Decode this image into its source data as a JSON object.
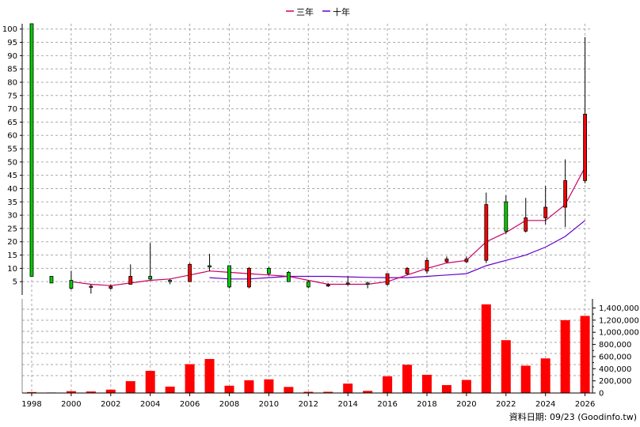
{
  "chart_data": {
    "type": "candlestick",
    "legend": [
      {
        "label": "三年",
        "color": "#cc0066"
      },
      {
        "label": "十年",
        "color": "#6600cc"
      }
    ],
    "up_color": "#ff0000",
    "down_color": "#00cc00",
    "price_axis": {
      "ylim": [
        0,
        102
      ],
      "ticks": [
        5,
        10,
        15,
        20,
        25,
        30,
        35,
        40,
        45,
        50,
        55,
        60,
        65,
        70,
        75,
        80,
        85,
        90,
        95,
        100
      ]
    },
    "volume_axis": {
      "ylim": [
        0,
        1550000
      ],
      "ticks": [
        "0",
        "200,000",
        "400,000",
        "600,000",
        "800,000",
        "1,000,000",
        "1,200,000",
        "1,400,000"
      ]
    },
    "x_ticks": [
      "1998",
      "2000",
      "2002",
      "2004",
      "2006",
      "2008",
      "2010",
      "2012",
      "2014",
      "2016",
      "2018",
      "2020",
      "2022",
      "2024",
      "2026"
    ],
    "candles": [
      {
        "year": 1998,
        "open": 102,
        "close": 7,
        "high": 102,
        "low": 7
      },
      {
        "year": 1999,
        "open": 7,
        "close": 4.5,
        "high": 7,
        "low": 4.5
      },
      {
        "year": 2000,
        "open": 5.5,
        "close": 2.5,
        "high": 9,
        "low": 2
      },
      {
        "year": 2001,
        "open": 3,
        "close": 3.3,
        "high": 4,
        "low": 0.5
      },
      {
        "year": 2002,
        "open": 2.5,
        "close": 3.2,
        "high": 4,
        "low": 2
      },
      {
        "year": 2003,
        "open": 4,
        "close": 7,
        "high": 11.5,
        "low": 4
      },
      {
        "year": 2004,
        "open": 7,
        "close": 6,
        "high": 19.5,
        "low": 5.5
      },
      {
        "year": 2005,
        "open": 5.5,
        "close": 5,
        "high": 6,
        "low": 4
      },
      {
        "year": 2006,
        "open": 5,
        "close": 11.5,
        "high": 12,
        "low": 5
      },
      {
        "year": 2007,
        "open": 11,
        "close": 10.5,
        "high": 15.5,
        "low": 9
      },
      {
        "year": 2008,
        "open": 11,
        "close": 3,
        "high": 11,
        "low": 2.5
      },
      {
        "year": 2009,
        "open": 3,
        "close": 10,
        "high": 10.5,
        "low": 2.5
      },
      {
        "year": 2010,
        "open": 10,
        "close": 8,
        "high": 10.5,
        "low": 7.5
      },
      {
        "year": 2011,
        "open": 8.5,
        "close": 5,
        "high": 9,
        "low": 5
      },
      {
        "year": 2012,
        "open": 5,
        "close": 3,
        "high": 5.5,
        "low": 2.5
      },
      {
        "year": 2013,
        "open": 3.5,
        "close": 3.8,
        "high": 4.5,
        "low": 3
      },
      {
        "year": 2014,
        "open": 4,
        "close": 4.5,
        "high": 7,
        "low": 3.5
      },
      {
        "year": 2015,
        "open": 4.5,
        "close": 4,
        "high": 5,
        "low": 2.5
      },
      {
        "year": 2016,
        "open": 4,
        "close": 8,
        "high": 8,
        "low": 3.5
      },
      {
        "year": 2017,
        "open": 8,
        "close": 10,
        "high": 10.5,
        "low": 7.5
      },
      {
        "year": 2018,
        "open": 9,
        "close": 13,
        "high": 14,
        "low": 8
      },
      {
        "year": 2019,
        "open": 12.5,
        "close": 13.5,
        "high": 14.5,
        "low": 12
      },
      {
        "year": 2020,
        "open": 12.5,
        "close": 13.5,
        "high": 14.5,
        "low": 12
      },
      {
        "year": 2021,
        "open": 13,
        "close": 34,
        "high": 38.5,
        "low": 12
      },
      {
        "year": 2022,
        "open": 35,
        "close": 24,
        "high": 37.5,
        "low": 23
      },
      {
        "year": 2023,
        "open": 24,
        "close": 29,
        "high": 36.5,
        "low": 23.5
      },
      {
        "year": 2024,
        "open": 29,
        "close": 33,
        "high": 41,
        "low": 26.5
      },
      {
        "year": 2025,
        "open": 33,
        "close": 43,
        "high": 51,
        "low": 25.5
      },
      {
        "year": 2026,
        "open": 43,
        "close": 68,
        "high": 97,
        "low": 42
      }
    ],
    "ma_3y": [
      {
        "year": 2000,
        "value": 5
      },
      {
        "year": 2001,
        "value": 4
      },
      {
        "year": 2002,
        "value": 3.5
      },
      {
        "year": 2003,
        "value": 4.5
      },
      {
        "year": 2004,
        "value": 5.5
      },
      {
        "year": 2005,
        "value": 6
      },
      {
        "year": 2006,
        "value": 7.5
      },
      {
        "year": 2007,
        "value": 9
      },
      {
        "year": 2008,
        "value": 8.5
      },
      {
        "year": 2009,
        "value": 8
      },
      {
        "year": 2010,
        "value": 7.5
      },
      {
        "year": 2011,
        "value": 7
      },
      {
        "year": 2012,
        "value": 5.5
      },
      {
        "year": 2013,
        "value": 4
      },
      {
        "year": 2014,
        "value": 4
      },
      {
        "year": 2015,
        "value": 4
      },
      {
        "year": 2016,
        "value": 5
      },
      {
        "year": 2017,
        "value": 7.5
      },
      {
        "year": 2018,
        "value": 10
      },
      {
        "year": 2019,
        "value": 12
      },
      {
        "year": 2020,
        "value": 13
      },
      {
        "year": 2021,
        "value": 20
      },
      {
        "year": 2022,
        "value": 23.5
      },
      {
        "year": 2023,
        "value": 28
      },
      {
        "year": 2024,
        "value": 28
      },
      {
        "year": 2025,
        "value": 34
      },
      {
        "year": 2026,
        "value": 48
      }
    ],
    "ma_10y": [
      {
        "year": 2007,
        "value": 6.5
      },
      {
        "year": 2008,
        "value": 6
      },
      {
        "year": 2009,
        "value": 6
      },
      {
        "year": 2010,
        "value": 6.5
      },
      {
        "year": 2011,
        "value": 7
      },
      {
        "year": 2012,
        "value": 7
      },
      {
        "year": 2013,
        "value": 7
      },
      {
        "year": 2014,
        "value": 6.8
      },
      {
        "year": 2015,
        "value": 6.6
      },
      {
        "year": 2016,
        "value": 6.5
      },
      {
        "year": 2017,
        "value": 6.5
      },
      {
        "year": 2018,
        "value": 7
      },
      {
        "year": 2019,
        "value": 7.5
      },
      {
        "year": 2020,
        "value": 8
      },
      {
        "year": 2021,
        "value": 11
      },
      {
        "year": 2022,
        "value": 13
      },
      {
        "year": 2023,
        "value": 15
      },
      {
        "year": 2024,
        "value": 18
      },
      {
        "year": 2025,
        "value": 22
      },
      {
        "year": 2026,
        "value": 28
      }
    ],
    "volume": [
      {
        "year": 1998,
        "value": 15000
      },
      {
        "year": 1999,
        "value": 8000
      },
      {
        "year": 2000,
        "value": 30000
      },
      {
        "year": 2001,
        "value": 25000
      },
      {
        "year": 2002,
        "value": 55000
      },
      {
        "year": 2003,
        "value": 195000
      },
      {
        "year": 2004,
        "value": 365000
      },
      {
        "year": 2005,
        "value": 105000
      },
      {
        "year": 2006,
        "value": 475000
      },
      {
        "year": 2007,
        "value": 560000
      },
      {
        "year": 2008,
        "value": 120000
      },
      {
        "year": 2009,
        "value": 210000
      },
      {
        "year": 2010,
        "value": 225000
      },
      {
        "year": 2011,
        "value": 100000
      },
      {
        "year": 2012,
        "value": 20000
      },
      {
        "year": 2013,
        "value": 20000
      },
      {
        "year": 2014,
        "value": 155000
      },
      {
        "year": 2015,
        "value": 35000
      },
      {
        "year": 2016,
        "value": 275000
      },
      {
        "year": 2017,
        "value": 465000
      },
      {
        "year": 2018,
        "value": 300000
      },
      {
        "year": 2019,
        "value": 130000
      },
      {
        "year": 2020,
        "value": 215000
      },
      {
        "year": 2021,
        "value": 1460000
      },
      {
        "year": 2022,
        "value": 870000
      },
      {
        "year": 2023,
        "value": 450000
      },
      {
        "year": 2024,
        "value": 570000
      },
      {
        "year": 2025,
        "value": 1200000
      },
      {
        "year": 2026,
        "value": 1270000
      }
    ]
  },
  "footer": {
    "source_text": "資料日期: 09/23  (Goodinfo.tw)"
  }
}
